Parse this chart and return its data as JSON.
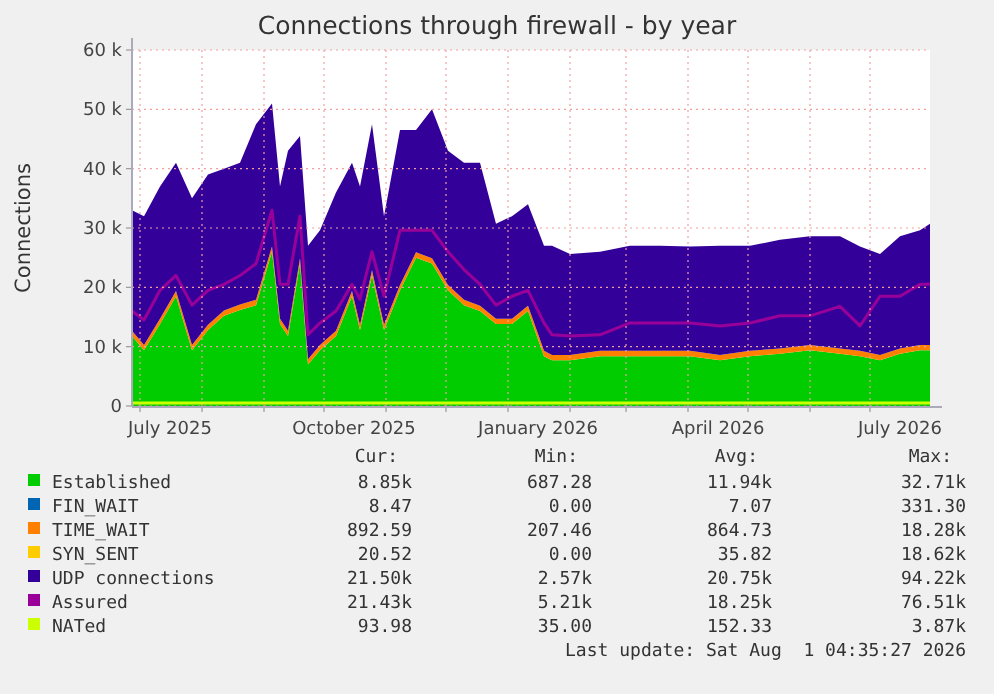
{
  "chart_data": {
    "type": "area",
    "title": "Connections through firewall - by year",
    "ylabel": "Connections",
    "stacked": true,
    "grid": true,
    "legend": "bottom",
    "x": [
      "2025-06-27",
      "2025-07-03",
      "2025-07-11",
      "2025-07-19",
      "2025-07-27",
      "2025-08-04",
      "2025-08-12",
      "2025-08-20",
      "2025-08-28",
      "2025-09-05",
      "2025-09-09",
      "2025-09-13",
      "2025-09-19",
      "2025-09-23",
      "2025-09-29",
      "2025-10-07",
      "2025-10-15",
      "2025-10-19",
      "2025-10-25",
      "2025-10-31",
      "2025-11-08",
      "2025-11-16",
      "2025-11-24",
      "2025-12-02",
      "2025-12-10",
      "2025-12-18",
      "2025-12-26",
      "2026-01-03",
      "2026-01-11",
      "2026-01-19",
      "2026-01-23",
      "2026-02-01",
      "2026-02-16",
      "2026-03-03",
      "2026-03-18",
      "2026-04-02",
      "2026-04-17",
      "2026-05-02",
      "2026-05-17",
      "2026-06-01",
      "2026-06-16",
      "2026-06-26",
      "2026-07-06",
      "2026-07-16",
      "2026-07-26",
      "2026-07-31"
    ],
    "xlim": [
      "2025-06-27",
      "2026-07-31"
    ],
    "xticks": [
      {
        "value": "2025-07-01",
        "label": null
      },
      {
        "value": "2025-07-16",
        "label": "July 2025"
      },
      {
        "value": "2025-08-01",
        "label": null
      },
      {
        "value": "2025-09-01",
        "label": null
      },
      {
        "value": "2025-10-01",
        "label": null
      },
      {
        "value": "2025-10-16",
        "label": "October 2025"
      },
      {
        "value": "2025-11-01",
        "label": null
      },
      {
        "value": "2025-12-01",
        "label": null
      },
      {
        "value": "2026-01-01",
        "label": null
      },
      {
        "value": "2026-01-16",
        "label": "January 2026"
      },
      {
        "value": "2026-02-01",
        "label": null
      },
      {
        "value": "2026-03-01",
        "label": null
      },
      {
        "value": "2026-04-01",
        "label": null
      },
      {
        "value": "2026-04-16",
        "label": "April 2026"
      },
      {
        "value": "2026-05-01",
        "label": null
      },
      {
        "value": "2026-06-01",
        "label": null
      },
      {
        "value": "2026-07-01",
        "label": null
      },
      {
        "value": "2026-07-16",
        "label": "July 2026"
      }
    ],
    "ylim": [
      0,
      60000
    ],
    "yticks": [
      {
        "value": 0,
        "label": "0"
      },
      {
        "value": 10000,
        "label": "10 k"
      },
      {
        "value": 20000,
        "label": "20 k"
      },
      {
        "value": 30000,
        "label": "30 k"
      },
      {
        "value": 40000,
        "label": "40 k"
      },
      {
        "value": 50000,
        "label": "50 k"
      },
      {
        "value": 60000,
        "label": "60 k"
      }
    ],
    "series": [
      {
        "name": "Established",
        "color": "#00cc00",
        "values": [
          11800,
          9400,
          13800,
          18500,
          9400,
          12800,
          15200,
          16200,
          17000,
          26000,
          13800,
          11800,
          24000,
          7000,
          9400,
          11800,
          18500,
          12800,
          22000,
          12800,
          19500,
          25000,
          24000,
          19500,
          17000,
          16000,
          13800,
          13800,
          16000,
          8400,
          7700,
          7700,
          8400,
          8400,
          8400,
          8400,
          7700,
          8400,
          8800,
          9400,
          8800,
          8400,
          7700,
          8800,
          9400,
          9400
        ]
      },
      {
        "name": "FIN_WAIT",
        "color": "#0066b3",
        "values": [
          null,
          null,
          null,
          null,
          null,
          null,
          null,
          null,
          null,
          null,
          null,
          null,
          null,
          null,
          null,
          null,
          null,
          null,
          null,
          null,
          null,
          null,
          null,
          null,
          null,
          null,
          null,
          null,
          null,
          null,
          null,
          null,
          null,
          null,
          null,
          null,
          null,
          null,
          null,
          null,
          null,
          null,
          null,
          null,
          null,
          null
        ]
      },
      {
        "name": "TIME_WAIT",
        "color": "#ff8000",
        "values": [
          900,
          900,
          900,
          900,
          900,
          900,
          900,
          900,
          900,
          900,
          900,
          900,
          900,
          900,
          900,
          900,
          900,
          900,
          900,
          900,
          900,
          900,
          900,
          900,
          900,
          900,
          900,
          900,
          900,
          900,
          900,
          900,
          900,
          900,
          900,
          900,
          900,
          900,
          900,
          900,
          900,
          900,
          900,
          900,
          900,
          900
        ]
      },
      {
        "name": "SYN_SENT",
        "color": "#ffcc00",
        "values": [
          null,
          null,
          null,
          null,
          null,
          null,
          null,
          null,
          null,
          null,
          null,
          null,
          null,
          null,
          null,
          null,
          null,
          null,
          null,
          null,
          null,
          null,
          null,
          null,
          null,
          null,
          null,
          null,
          null,
          null,
          null,
          null,
          null,
          null,
          null,
          null,
          null,
          null,
          null,
          null,
          null,
          null,
          null,
          null,
          null,
          null
        ]
      },
      {
        "name": "UDP connections",
        "color": "#330099",
        "values": [
          20300,
          21700,
          22300,
          21600,
          24700,
          25300,
          23900,
          23900,
          29600,
          24100,
          22300,
          30300,
          20600,
          19100,
          19300,
          23300,
          21600,
          23300,
          24600,
          18300,
          26100,
          20600,
          25100,
          22600,
          23100,
          24100,
          16000,
          17300,
          17100,
          17700,
          18400,
          17000,
          16700,
          17700,
          17700,
          17600,
          18400,
          17700,
          18300,
          18300,
          18900,
          17600,
          17000,
          18900,
          19300,
          20400
        ]
      },
      {
        "name": "Assured",
        "type": "line",
        "color": "#990099",
        "values": [
          16000,
          14500,
          19500,
          22000,
          17000,
          19500,
          20500,
          22000,
          24000,
          33000,
          20500,
          20500,
          32000,
          12000,
          14000,
          16000,
          20500,
          18000,
          26000,
          18500,
          29600,
          29600,
          29600,
          26000,
          23000,
          20500,
          17000,
          18500,
          19500,
          14000,
          12000,
          11800,
          12000,
          14000,
          14000,
          14000,
          13500,
          14000,
          15200,
          15200,
          16800,
          13500,
          18500,
          18500,
          20500,
          20500
        ]
      },
      {
        "name": "NATed",
        "type": "line",
        "color": "#ccff00",
        "values": [
          500,
          500,
          500,
          500,
          500,
          500,
          500,
          500,
          500,
          500,
          500,
          500,
          500,
          500,
          500,
          500,
          500,
          500,
          500,
          500,
          500,
          500,
          500,
          500,
          500,
          500,
          500,
          500,
          500,
          500,
          500,
          500,
          500,
          500,
          500,
          500,
          500,
          500,
          500,
          500,
          500,
          500,
          500,
          500,
          500,
          500
        ]
      }
    ],
    "annotations": [
      "Cur:",
      "Min:",
      "Avg:",
      "Max:",
      "8.85k",
      "687.28",
      "11.94k",
      "32.71k",
      "8.47",
      "0.00",
      "7.07",
      "331.30",
      "892.59",
      "207.46",
      "864.73",
      "18.28k",
      "20.52",
      "0.00",
      "35.82",
      "18.62k",
      "21.50k",
      "2.57k",
      "20.75k",
      "94.22k",
      "21.43k",
      "5.21k",
      "18.25k",
      "76.51k",
      "93.98",
      "35.00",
      "152.33",
      "3.87k",
      "Last update: Sat Aug  1 04:35:27 2026"
    ]
  }
}
